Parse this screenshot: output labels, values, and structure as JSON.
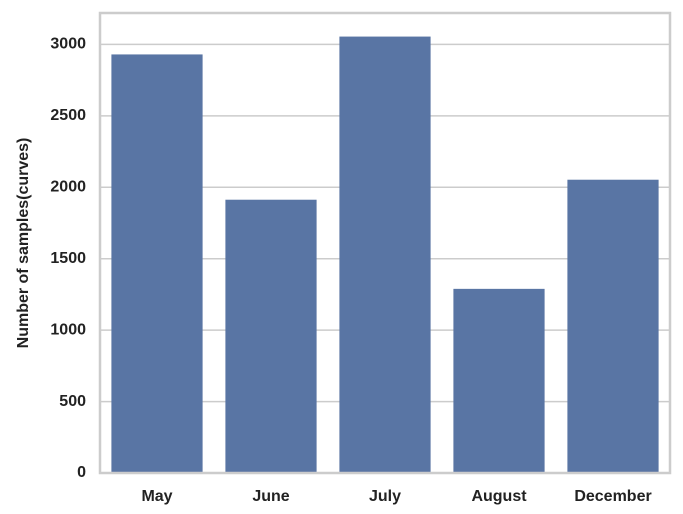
{
  "chart_data": {
    "type": "bar",
    "ylabel": "Number of samples(curves)",
    "categories": [
      "May",
      "June",
      "July",
      "August",
      "December"
    ],
    "values": [
      2930,
      1913,
      3055,
      1289,
      2053
    ],
    "color": "#5975a4",
    "ylim": [
      0,
      3220
    ],
    "yticks": [
      0,
      500,
      1000,
      1500,
      2000,
      2500,
      3000
    ],
    "grid": true
  }
}
